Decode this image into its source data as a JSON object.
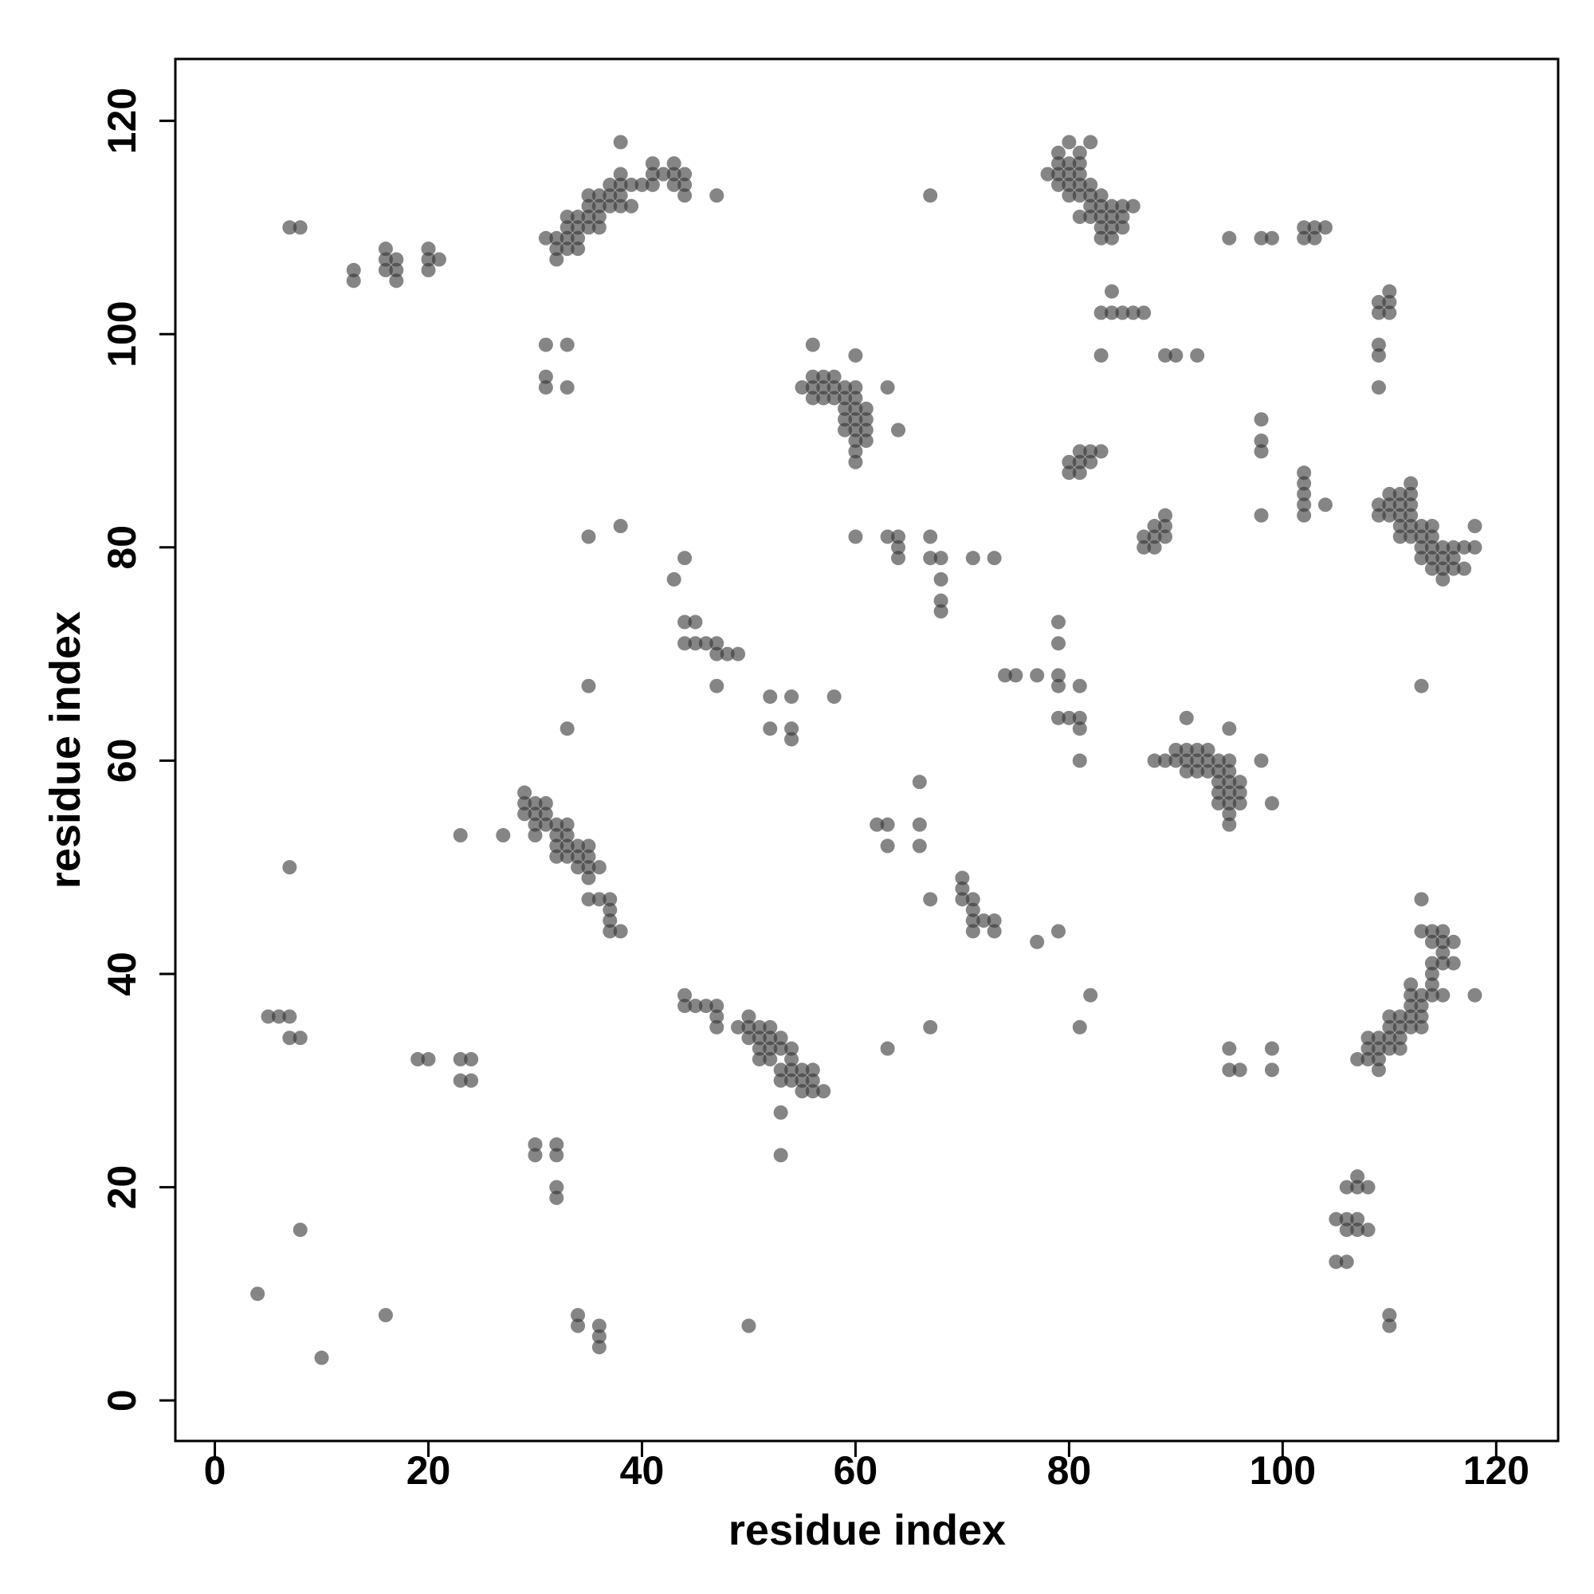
{
  "chart_data": {
    "type": "scatter",
    "xlabel": "residue index",
    "ylabel": "residue index",
    "color": "#333333",
    "xlim": [
      -3.7,
      125.8
    ],
    "ylim": [
      -3.8,
      125.8
    ],
    "xticks": [
      0,
      20,
      40,
      60,
      80,
      100,
      120
    ],
    "yticks": [
      0,
      20,
      40,
      60,
      80,
      100,
      120
    ],
    "grid": false,
    "x": [
      4,
      10,
      8,
      16,
      7,
      5,
      6,
      7,
      7,
      8,
      19,
      20,
      23,
      24,
      23,
      24,
      23,
      27,
      30,
      32,
      30,
      32,
      32,
      32,
      34,
      34,
      36,
      36,
      36,
      50,
      53,
      53,
      7,
      8,
      13,
      13,
      16,
      16,
      16,
      17,
      17,
      17,
      20,
      20,
      20,
      21,
      31,
      32,
      32,
      32,
      33,
      33,
      33,
      33,
      34,
      34,
      34,
      34,
      35,
      35,
      35,
      35,
      36,
      36,
      36,
      36,
      37,
      37,
      37,
      38,
      38,
      38,
      38,
      38,
      39,
      39,
      40,
      41,
      41,
      41,
      42,
      43,
      43,
      43,
      44,
      44,
      44,
      47,
      31,
      33,
      31,
      31,
      33,
      35,
      38,
      35,
      33,
      43,
      44,
      44,
      45,
      44,
      45,
      46,
      47,
      47,
      48,
      49,
      47,
      52,
      54,
      58,
      52,
      54,
      54,
      29,
      29,
      30,
      31,
      29,
      30,
      31,
      30,
      31,
      32,
      33,
      30,
      32,
      33,
      32,
      33,
      34,
      35,
      32,
      33,
      34,
      35,
      34,
      35,
      36,
      35,
      35,
      36,
      37,
      37,
      37,
      37,
      38,
      44,
      44,
      45,
      46,
      47,
      47,
      47,
      49,
      50,
      50,
      51,
      52,
      50,
      51,
      52,
      53,
      51,
      52,
      53,
      54,
      51,
      52,
      54,
      53,
      54,
      55,
      56,
      53,
      54,
      55,
      56,
      55,
      56,
      57,
      56,
      60,
      55,
      56,
      57,
      58,
      56,
      57,
      58,
      59,
      60,
      63,
      56,
      57,
      58,
      59,
      60,
      59,
      60,
      61,
      59,
      60,
      61,
      59,
      60,
      61,
      64,
      60,
      61,
      60,
      60,
      60,
      63,
      64,
      64,
      64,
      67,
      67,
      68,
      68,
      68,
      68,
      71,
      73,
      67,
      62,
      63,
      66,
      63,
      66,
      66,
      67,
      70,
      70,
      70,
      71,
      71,
      71,
      72,
      73,
      71,
      73,
      63,
      67,
      74,
      75,
      77,
      79,
      79,
      79,
      79,
      81,
      79,
      80,
      81,
      81,
      81,
      77,
      79,
      81,
      82,
      78,
      79,
      79,
      79,
      79,
      80,
      80,
      80,
      80,
      80,
      81,
      81,
      81,
      81,
      81,
      82,
      82,
      82,
      82,
      83,
      83,
      83,
      83,
      84,
      84,
      84,
      84,
      85,
      85,
      85,
      86,
      81,
      82,
      83,
      83,
      84,
      84,
      85,
      86,
      87,
      83,
      89,
      90,
      92,
      80,
      80,
      81,
      81,
      81,
      82,
      82,
      83,
      87,
      87,
      88,
      88,
      88,
      89,
      89,
      89,
      95,
      98,
      99,
      102,
      102,
      103,
      103,
      104,
      98,
      98,
      98,
      98,
      102,
      102,
      102,
      102,
      102,
      104,
      88,
      89,
      90,
      90,
      91,
      91,
      91,
      91,
      92,
      92,
      92,
      93,
      93,
      93,
      94,
      94,
      94,
      94,
      94,
      95,
      95,
      95,
      95,
      95,
      95,
      95,
      95,
      96,
      96,
      96,
      98,
      99,
      95,
      95,
      96,
      99,
      99,
      109,
      109,
      110,
      110,
      110,
      109,
      109,
      109,
      113,
      109,
      109,
      110,
      110,
      110,
      111,
      111,
      111,
      111,
      111,
      112,
      112,
      112,
      112,
      112,
      112,
      113,
      113,
      113,
      113,
      114,
      114,
      114,
      114,
      114,
      115,
      115,
      115,
      115,
      116,
      116,
      116,
      117,
      117,
      118,
      118,
      107,
      108,
      108,
      108,
      109,
      109,
      109,
      109,
      110,
      110,
      110,
      110,
      111,
      111,
      111,
      111,
      112,
      112,
      112,
      112,
      112,
      113,
      113,
      113,
      113,
      113,
      113,
      114,
      114,
      114,
      114,
      114,
      114,
      115,
      115,
      115,
      115,
      115,
      116,
      116,
      118,
      105,
      106,
      106,
      106,
      107,
      107,
      107,
      107,
      108,
      108,
      105,
      106,
      110,
      110
    ],
    "values": [
      10,
      4,
      16,
      8,
      50,
      36,
      36,
      36,
      34,
      34,
      32,
      32,
      32,
      32,
      30,
      30,
      53,
      53,
      24,
      24,
      23,
      23,
      20,
      19,
      8,
      7,
      7,
      6,
      5,
      7,
      27,
      23,
      110,
      110,
      106,
      105,
      108,
      107,
      106,
      107,
      106,
      105,
      108,
      107,
      106,
      107,
      109,
      109,
      108,
      107,
      111,
      110,
      109,
      108,
      111,
      110,
      109,
      108,
      113,
      112,
      111,
      110,
      113,
      112,
      111,
      110,
      114,
      113,
      112,
      114,
      113,
      112,
      115,
      118,
      114,
      112,
      114,
      116,
      115,
      114,
      115,
      116,
      115,
      114,
      115,
      114,
      113,
      113,
      99,
      99,
      96,
      95,
      95,
      81,
      82,
      67,
      63,
      77,
      79,
      73,
      73,
      71,
      71,
      71,
      71,
      70,
      70,
      70,
      67,
      66,
      66,
      66,
      63,
      63,
      62,
      57,
      56,
      56,
      56,
      55,
      55,
      55,
      54,
      54,
      54,
      54,
      53,
      53,
      53,
      52,
      52,
      52,
      52,
      51,
      51,
      51,
      51,
      50,
      50,
      50,
      49,
      47,
      47,
      47,
      46,
      45,
      44,
      44,
      38,
      37,
      37,
      37,
      37,
      36,
      35,
      35,
      36,
      35,
      35,
      35,
      34,
      34,
      34,
      34,
      33,
      33,
      33,
      33,
      32,
      32,
      32,
      31,
      31,
      31,
      31,
      30,
      30,
      30,
      30,
      29,
      29,
      29,
      99,
      98,
      95,
      96,
      96,
      96,
      95,
      95,
      95,
      95,
      95,
      95,
      94,
      94,
      94,
      94,
      94,
      93,
      93,
      93,
      92,
      92,
      92,
      91,
      91,
      91,
      91,
      90,
      90,
      89,
      88,
      81,
      81,
      81,
      80,
      79,
      81,
      79,
      79,
      77,
      75,
      74,
      79,
      79,
      113,
      54,
      54,
      54,
      52,
      52,
      58,
      47,
      49,
      48,
      47,
      47,
      46,
      45,
      45,
      45,
      44,
      44,
      33,
      35,
      68,
      68,
      68,
      73,
      71,
      68,
      67,
      67,
      64,
      64,
      64,
      63,
      60,
      43,
      44,
      35,
      38,
      115,
      117,
      116,
      115,
      114,
      116,
      115,
      114,
      113,
      118,
      117,
      116,
      115,
      114,
      113,
      114,
      113,
      112,
      111,
      113,
      112,
      111,
      110,
      112,
      111,
      110,
      109,
      112,
      111,
      110,
      112,
      111,
      118,
      109,
      102,
      102,
      104,
      102,
      102,
      102,
      98,
      98,
      98,
      98,
      88,
      87,
      89,
      88,
      87,
      89,
      88,
      89,
      81,
      80,
      81,
      80,
      82,
      83,
      82,
      81,
      109,
      109,
      109,
      110,
      109,
      110,
      109,
      110,
      92,
      90,
      89,
      83,
      87,
      86,
      85,
      84,
      83,
      84,
      60,
      60,
      60,
      61,
      64,
      61,
      60,
      59,
      61,
      60,
      59,
      61,
      60,
      59,
      60,
      59,
      58,
      57,
      56,
      63,
      60,
      59,
      58,
      57,
      56,
      55,
      54,
      58,
      57,
      56,
      60,
      56,
      33,
      31,
      31,
      33,
      31,
      103,
      102,
      104,
      103,
      102,
      99,
      98,
      95,
      67,
      84,
      83,
      85,
      84,
      83,
      85,
      84,
      83,
      82,
      81,
      86,
      85,
      84,
      83,
      82,
      81,
      82,
      81,
      80,
      79,
      82,
      81,
      80,
      79,
      78,
      80,
      79,
      78,
      77,
      80,
      79,
      78,
      80,
      78,
      82,
      80,
      32,
      32,
      33,
      34,
      33,
      32,
      31,
      34,
      36,
      35,
      34,
      33,
      36,
      35,
      34,
      33,
      39,
      38,
      37,
      36,
      35,
      38,
      37,
      36,
      35,
      47,
      44,
      44,
      43,
      41,
      40,
      39,
      38,
      44,
      43,
      42,
      41,
      38,
      43,
      41,
      38,
      17,
      20,
      17,
      16,
      21,
      20,
      17,
      16,
      20,
      16,
      13,
      13,
      8,
      7
    ]
  }
}
